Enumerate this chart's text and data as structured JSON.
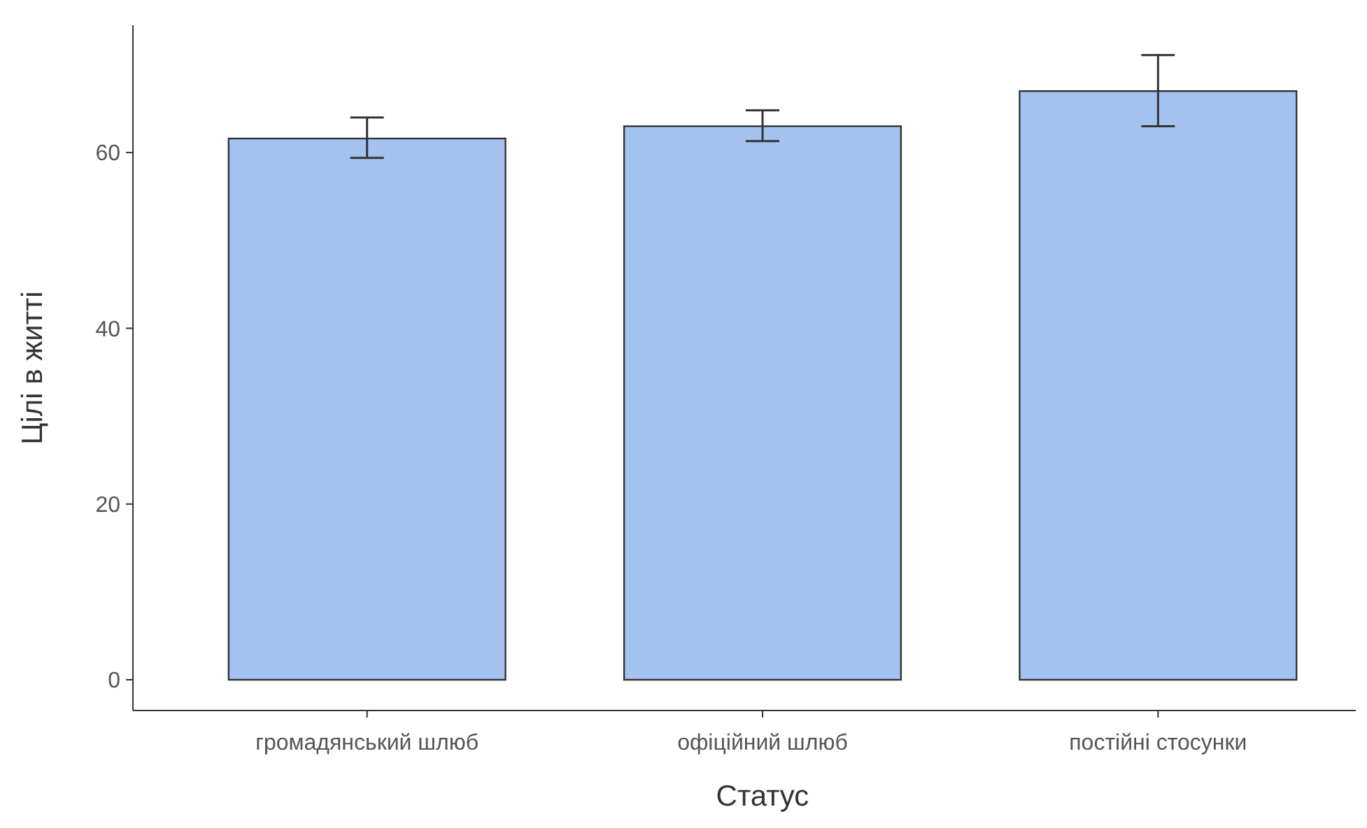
{
  "chart_data": {
    "type": "bar",
    "xlabel": "Статус",
    "ylabel": "Цілі в житті",
    "categories": [
      "громадянський шлюб",
      "офіційний шлюб",
      "постійні стосунки"
    ],
    "values": [
      61.6,
      63.0,
      67.0
    ],
    "errors": [
      [
        59.4,
        64.0
      ],
      [
        61.3,
        64.8
      ],
      [
        63.0,
        71.1
      ]
    ],
    "color": "#a4c2f0",
    "ylim": [
      -3.5,
      74.5
    ],
    "yticks": [
      0,
      20,
      40,
      60
    ],
    "grid": false
  }
}
